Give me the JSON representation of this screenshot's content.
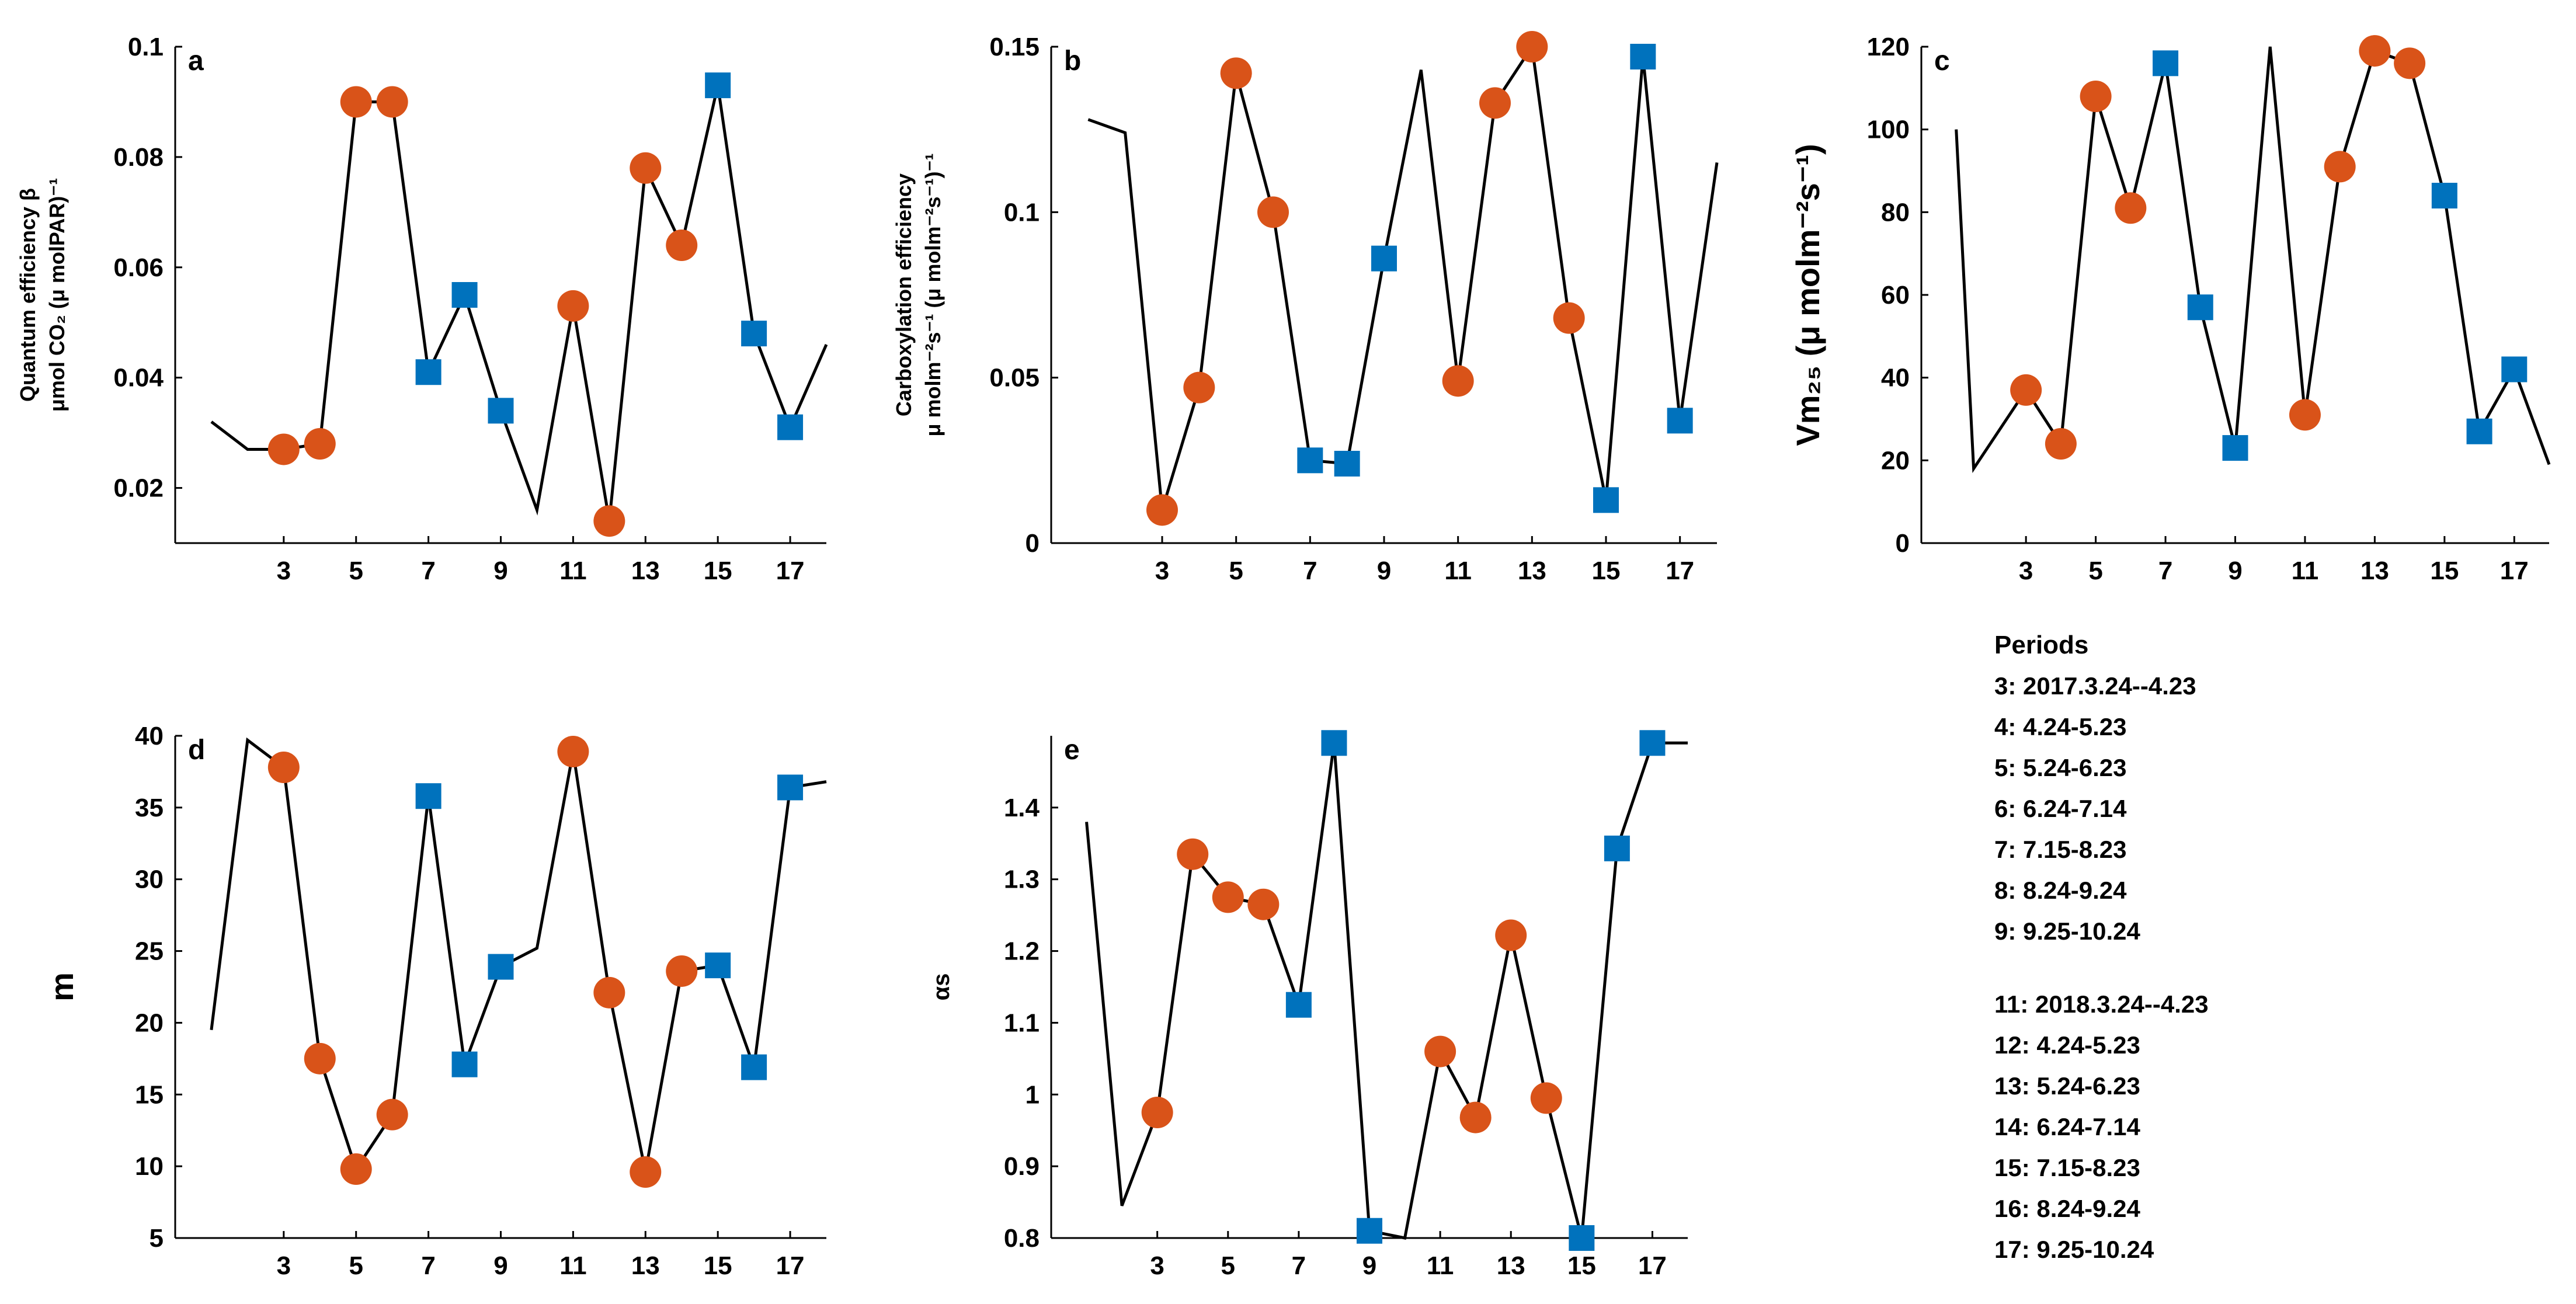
{
  "legend": {
    "title": "Periods",
    "items_2017": [
      "3: 2017.3.24--4.23",
      "4: 4.24-5.23",
      "5: 5.24-6.23",
      "6: 6.24-7.14",
      "7: 7.15-8.23",
      "8: 8.24-9.24",
      "9: 9.25-10.24"
    ],
    "items_2018": [
      "11: 2018.3.24--4.23",
      "12: 4.24-5.23",
      "13: 5.24-6.23",
      "14: 6.24-7.14",
      "15: 7.15-8.23",
      "16: 8.24-9.24",
      "17: 9.25-10.24"
    ]
  },
  "colors": {
    "circle": "#D95319",
    "square": "#0072BD",
    "line": "#000000"
  },
  "chart_data": [
    {
      "id": "a",
      "type": "line",
      "letter": "a",
      "ylabel_lines": [
        "Quantum efficiency β",
        "μmol CO₂ (μ molPAR)⁻¹"
      ],
      "xlim": [
        0,
        18
      ],
      "ylim": [
        0.01,
        0.1
      ],
      "xticks": [
        "3",
        "5",
        "7",
        "9",
        "11",
        "13",
        "15",
        "17"
      ],
      "yticks": [
        "0.02",
        "0.04",
        "0.06",
        "0.08",
        "0.1"
      ],
      "yticks_values": [
        0.02,
        0.04,
        0.06,
        0.08,
        0.1
      ],
      "line": [
        [
          1,
          0.032
        ],
        [
          2,
          0.027
        ],
        [
          3,
          0.027
        ],
        [
          4,
          0.028
        ],
        [
          5,
          0.09
        ],
        [
          6,
          0.09
        ],
        [
          7,
          0.041
        ],
        [
          8,
          0.055
        ],
        [
          9,
          0.034
        ],
        [
          10,
          0.016
        ],
        [
          11,
          0.053
        ],
        [
          12,
          0.014
        ],
        [
          13,
          0.078
        ],
        [
          14,
          0.064
        ],
        [
          15,
          0.093
        ],
        [
          16,
          0.048
        ],
        [
          17,
          0.031
        ],
        [
          18,
          0.046
        ]
      ],
      "circles": [
        [
          3,
          0.027
        ],
        [
          4,
          0.028
        ],
        [
          5,
          0.09
        ],
        [
          6,
          0.09
        ],
        [
          11,
          0.053
        ],
        [
          12,
          0.014
        ],
        [
          13,
          0.078
        ],
        [
          14,
          0.064
        ]
      ],
      "squares": [
        [
          7,
          0.041
        ],
        [
          8,
          0.055
        ],
        [
          9,
          0.034
        ],
        [
          15,
          0.093
        ],
        [
          16,
          0.048
        ],
        [
          17,
          0.031
        ]
      ]
    },
    {
      "id": "b",
      "type": "line",
      "letter": "b",
      "ylabel_lines": [
        "Carboxylation efficiency",
        "μ molm⁻²s⁻¹ (μ molm⁻²s⁻¹)⁻¹"
      ],
      "xlim": [
        0,
        18
      ],
      "ylim": [
        0,
        0.15
      ],
      "xticks": [
        "3",
        "5",
        "7",
        "9",
        "11",
        "13",
        "15",
        "17"
      ],
      "yticks": [
        "0",
        "0.05",
        "0.1",
        "0.15"
      ],
      "yticks_values": [
        0,
        0.05,
        0.1,
        0.15
      ],
      "line": [
        [
          1,
          0.128
        ],
        [
          2,
          0.124
        ],
        [
          3,
          0.01
        ],
        [
          4,
          0.047
        ],
        [
          5,
          0.142
        ],
        [
          6,
          0.1
        ],
        [
          7,
          0.025
        ],
        [
          8,
          0.024
        ],
        [
          9,
          0.086
        ],
        [
          10,
          0.143
        ],
        [
          11,
          0.049
        ],
        [
          12,
          0.133
        ],
        [
          13,
          0.15
        ],
        [
          14,
          0.068
        ],
        [
          15,
          0.013
        ],
        [
          16,
          0.147
        ],
        [
          17,
          0.037
        ],
        [
          18,
          0.115
        ]
      ],
      "circles": [
        [
          3,
          0.01
        ],
        [
          4,
          0.047
        ],
        [
          5,
          0.142
        ],
        [
          6,
          0.1
        ],
        [
          11,
          0.049
        ],
        [
          12,
          0.133
        ],
        [
          13,
          0.15
        ],
        [
          14,
          0.068
        ]
      ],
      "squares": [
        [
          7,
          0.025
        ],
        [
          8,
          0.024
        ],
        [
          9,
          0.086
        ],
        [
          15,
          0.013
        ],
        [
          16,
          0.147
        ],
        [
          17,
          0.037
        ]
      ]
    },
    {
      "id": "c",
      "type": "line",
      "letter": "c",
      "ylabel_lines": [
        "Vm₂₅ (μ molm⁻²s⁻¹)"
      ],
      "xlim": [
        0,
        18
      ],
      "ylim": [
        0,
        120
      ],
      "xticks": [
        "3",
        "5",
        "7",
        "9",
        "11",
        "13",
        "15",
        "17"
      ],
      "yticks": [
        "0",
        "20",
        "40",
        "60",
        "80",
        "100",
        "120"
      ],
      "yticks_values": [
        0,
        20,
        40,
        60,
        80,
        100,
        120
      ],
      "line": [
        [
          1,
          100
        ],
        [
          1.5,
          18
        ],
        [
          3,
          37
        ],
        [
          4,
          24
        ],
        [
          5,
          108
        ],
        [
          6,
          81
        ],
        [
          7,
          116
        ],
        [
          8,
          57
        ],
        [
          9,
          23
        ],
        [
          10,
          120
        ],
        [
          11,
          31
        ],
        [
          12,
          91
        ],
        [
          13,
          119
        ],
        [
          14,
          116
        ],
        [
          15,
          84
        ],
        [
          16,
          27
        ],
        [
          17,
          42
        ],
        [
          18,
          19
        ]
      ],
      "circles": [
        [
          3,
          37
        ],
        [
          4,
          24
        ],
        [
          5,
          108
        ],
        [
          6,
          81
        ],
        [
          11,
          31
        ],
        [
          12,
          91
        ],
        [
          13,
          119
        ],
        [
          14,
          116
        ]
      ],
      "squares": [
        [
          7,
          116
        ],
        [
          8,
          57
        ],
        [
          9,
          23
        ],
        [
          15,
          84
        ],
        [
          16,
          27
        ],
        [
          17,
          42
        ]
      ]
    },
    {
      "id": "d",
      "type": "line",
      "letter": "d",
      "ylabel_lines": [
        "m"
      ],
      "xlim": [
        0,
        18
      ],
      "ylim": [
        5,
        40
      ],
      "xticks": [
        "3",
        "5",
        "7",
        "9",
        "11",
        "13",
        "15",
        "17"
      ],
      "yticks": [
        "5",
        "10",
        "15",
        "20",
        "25",
        "30",
        "35",
        "40"
      ],
      "yticks_values": [
        5,
        10,
        15,
        20,
        25,
        30,
        35,
        40
      ],
      "line": [
        [
          1,
          19.5
        ],
        [
          2,
          39.7
        ],
        [
          3,
          37.8
        ],
        [
          4,
          17.5
        ],
        [
          5,
          9.8
        ],
        [
          6,
          13.6
        ],
        [
          7,
          35.8
        ],
        [
          8,
          17.1
        ],
        [
          9,
          23.9
        ],
        [
          10,
          25.2
        ],
        [
          11,
          38.9
        ],
        [
          12,
          22.1
        ],
        [
          13,
          9.6
        ],
        [
          14,
          23.6
        ],
        [
          15,
          24
        ],
        [
          16,
          16.9
        ],
        [
          17,
          36.4
        ],
        [
          18,
          36.8
        ]
      ],
      "circles": [
        [
          3,
          37.8
        ],
        [
          4,
          17.5
        ],
        [
          5,
          9.8
        ],
        [
          6,
          13.6
        ],
        [
          11,
          38.9
        ],
        [
          12,
          22.1
        ],
        [
          13,
          9.6
        ],
        [
          14,
          23.6
        ]
      ],
      "squares": [
        [
          7,
          35.8
        ],
        [
          8,
          17.1
        ],
        [
          9,
          23.9
        ],
        [
          15,
          24
        ],
        [
          16,
          16.9
        ],
        [
          17,
          36.4
        ]
      ]
    },
    {
      "id": "e",
      "type": "line",
      "letter": "e",
      "ylabel_lines": [
        "αs"
      ],
      "xlim": [
        0,
        18
      ],
      "ylim": [
        0.8,
        1.5
      ],
      "xticks": [
        "3",
        "5",
        "7",
        "9",
        "11",
        "13",
        "15",
        "17"
      ],
      "yticks": [
        "0.8",
        "0.9",
        "1",
        "1.1",
        "1.2",
        "1.3",
        "1.4"
      ],
      "yticks_values": [
        0.8,
        0.9,
        1,
        1.1,
        1.2,
        1.3,
        1.4
      ],
      "line": [
        [
          1,
          1.38
        ],
        [
          2,
          0.845
        ],
        [
          3,
          0.975
        ],
        [
          4,
          1.335
        ],
        [
          5,
          1.275
        ],
        [
          6,
          1.265
        ],
        [
          7,
          1.125
        ],
        [
          8,
          1.49
        ],
        [
          9,
          0.81
        ],
        [
          10,
          0.8
        ],
        [
          11,
          1.06
        ],
        [
          12,
          0.968
        ],
        [
          13,
          1.222
        ],
        [
          14,
          0.995
        ],
        [
          15,
          0.8
        ],
        [
          16,
          1.343
        ],
        [
          17,
          1.49
        ],
        [
          18,
          1.49
        ]
      ],
      "circles": [
        [
          3,
          0.975
        ],
        [
          4,
          1.335
        ],
        [
          5,
          1.275
        ],
        [
          6,
          1.265
        ],
        [
          11,
          1.06
        ],
        [
          12,
          0.968
        ],
        [
          13,
          1.222
        ],
        [
          14,
          0.995
        ]
      ],
      "squares": [
        [
          7,
          1.125
        ],
        [
          8,
          1.49
        ],
        [
          9,
          0.81
        ],
        [
          15,
          0.8
        ],
        [
          16,
          1.343
        ],
        [
          17,
          1.49
        ]
      ]
    }
  ]
}
